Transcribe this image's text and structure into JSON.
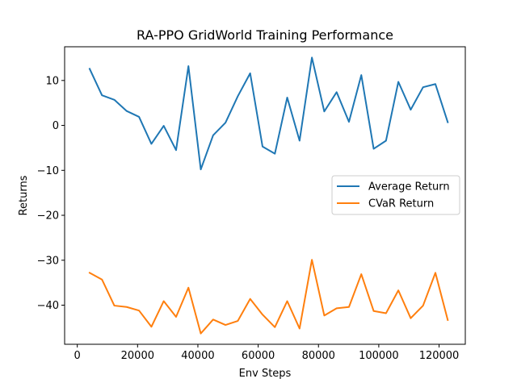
{
  "chart_data": {
    "type": "line",
    "title": "RA-PPO GridWorld Training Performance",
    "xlabel": "Env Steps",
    "ylabel": "Returns",
    "xlim": [
      -4200,
      128700
    ],
    "ylim": [
      -48.7,
      17.5
    ],
    "xticks": [
      0,
      20000,
      40000,
      60000,
      80000,
      100000,
      120000
    ],
    "xtick_labels": [
      "0",
      "20000",
      "40000",
      "60000",
      "80000",
      "100000",
      "120000"
    ],
    "yticks": [
      -40,
      -30,
      -20,
      -10,
      0,
      10
    ],
    "ytick_labels": [
      "−40",
      "−30",
      "−20",
      "−10",
      "0",
      "10"
    ],
    "grid": false,
    "legend_position": "center-right",
    "x": [
      4096,
      8192,
      12288,
      16384,
      20480,
      24576,
      28672,
      32768,
      36864,
      40960,
      45056,
      49152,
      53248,
      57344,
      61440,
      65536,
      69632,
      73728,
      77824,
      81920,
      86016,
      90112,
      94208,
      98304,
      102400,
      106496,
      110592,
      114688,
      118784,
      122880
    ],
    "series": [
      {
        "name": "Average Return",
        "color": "#1f77b4",
        "values": [
          12.6,
          6.7,
          5.7,
          3.2,
          1.9,
          -4.1,
          -0.1,
          -5.5,
          13.2,
          -9.8,
          -2.2,
          0.6,
          6.5,
          11.6,
          -4.7,
          -6.3,
          6.2,
          -3.4,
          15.1,
          3.1,
          7.4,
          0.8,
          11.2,
          -5.2,
          -3.4,
          9.7,
          3.5,
          8.5,
          9.2,
          0.7
        ]
      },
      {
        "name": "CVaR Return",
        "color": "#ff7f0e",
        "values": [
          -32.8,
          -34.3,
          -40.1,
          -40.4,
          -41.2,
          -44.8,
          -39.1,
          -42.6,
          -36.1,
          -46.3,
          -43.2,
          -44.4,
          -43.5,
          -38.6,
          -42.1,
          -44.9,
          -39.1,
          -45.2,
          -29.9,
          -42.3,
          -40.7,
          -40.4,
          -33.1,
          -41.3,
          -41.8,
          -36.7,
          -42.9,
          -40.1,
          -32.8,
          -43.3
        ]
      }
    ]
  }
}
